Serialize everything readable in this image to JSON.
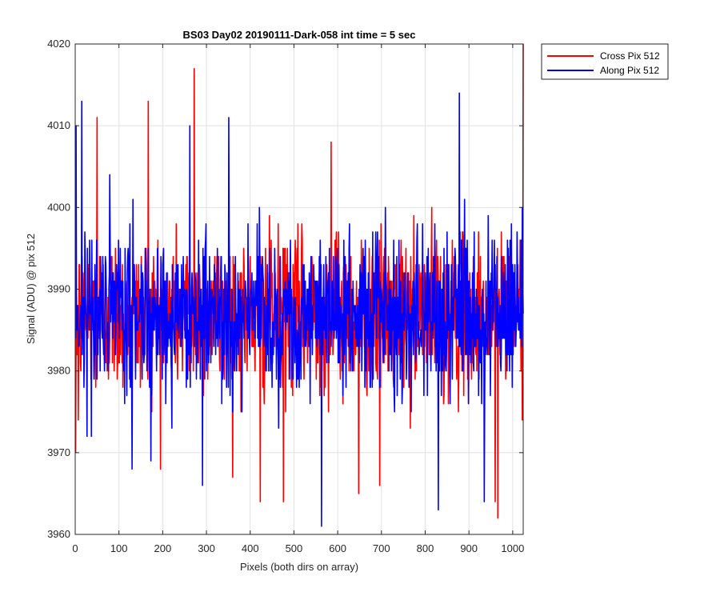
{
  "chart_data": {
    "type": "line",
    "title": "BS03 Day02 20190111-Dark-058 int time = 5 sec",
    "xlabel": "Pixels (both dirs on array)",
    "ylabel": "Signal (ADU) @ pix 512",
    "xlim": [
      0,
      1024
    ],
    "ylim": [
      3960,
      4020
    ],
    "xticks": [
      0,
      100,
      200,
      300,
      400,
      500,
      600,
      700,
      800,
      900,
      1000
    ],
    "yticks": [
      3960,
      3970,
      3980,
      3990,
      4000,
      4010,
      4020
    ],
    "grid": true,
    "legend_position": "outside top-right",
    "colors": {
      "cross": "#ff0000",
      "along": "#0000ff"
    },
    "series": [
      {
        "name": "Cross Pix 512",
        "color": "#ff0000",
        "x_range": [
          1,
          1024
        ],
        "mean": 3987,
        "noise_std": 4.8,
        "approx_min": 3962,
        "approx_max": 4020,
        "notable_points": [
          {
            "x": 1,
            "y": 3970
          },
          {
            "x": 7,
            "y": 3974
          },
          {
            "x": 50,
            "y": 4011
          },
          {
            "x": 167,
            "y": 4013
          },
          {
            "x": 272,
            "y": 4017
          },
          {
            "x": 423,
            "y": 3964
          },
          {
            "x": 476,
            "y": 3964
          },
          {
            "x": 585,
            "y": 4008
          },
          {
            "x": 648,
            "y": 3965
          },
          {
            "x": 696,
            "y": 3966
          },
          {
            "x": 960,
            "y": 3964
          },
          {
            "x": 966,
            "y": 3962
          },
          {
            "x": 1024,
            "y": 4020
          }
        ]
      },
      {
        "name": "Along Pix 512",
        "color": "#0000ff",
        "x_range": [
          1,
          1024
        ],
        "mean": 3987,
        "noise_std": 4.9,
        "approx_min": 3961,
        "approx_max": 4014,
        "notable_points": [
          {
            "x": 2,
            "y": 4010
          },
          {
            "x": 15,
            "y": 4013
          },
          {
            "x": 130,
            "y": 3968
          },
          {
            "x": 262,
            "y": 4010
          },
          {
            "x": 291,
            "y": 3966
          },
          {
            "x": 351,
            "y": 4011
          },
          {
            "x": 563,
            "y": 3961
          },
          {
            "x": 830,
            "y": 3963
          },
          {
            "x": 878,
            "y": 4014
          },
          {
            "x": 935,
            "y": 3964
          }
        ]
      }
    ]
  }
}
